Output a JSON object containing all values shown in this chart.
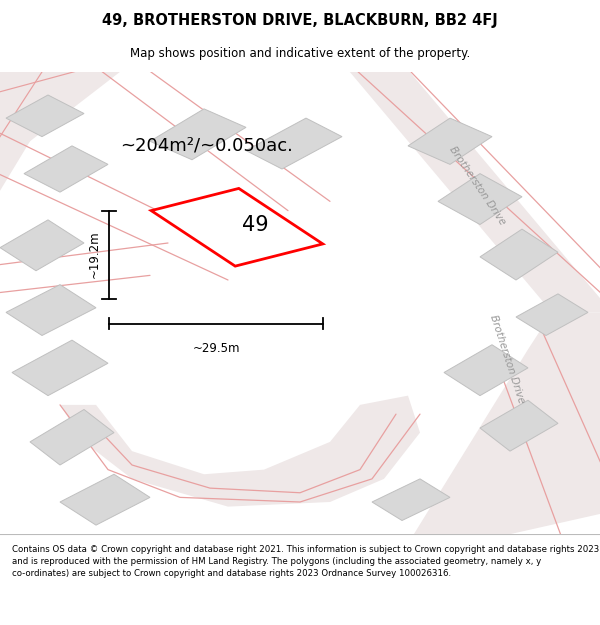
{
  "title": "49, BROTHERSTON DRIVE, BLACKBURN, BB2 4FJ",
  "subtitle": "Map shows position and indicative extent of the property.",
  "footer": "Contains OS data © Crown copyright and database right 2021. This information is subject to Crown copyright and database rights 2023 and is reproduced with the permission of HM Land Registry. The polygons (including the associated geometry, namely x, y co-ordinates) are subject to Crown copyright and database rights 2023 Ordnance Survey 100026316.",
  "area_text": "~204m²/~0.050ac.",
  "label_49": "49",
  "dim_width": "~29.5m",
  "dim_height": "~19.2m",
  "road_label_top": "Brotherston Drive",
  "road_label_bottom": "Brotherston Drive",
  "bg_color": "#f5f0f0",
  "plot_color": "#ff0000",
  "plot_fill": "#ffffff",
  "building_fill": "#d8d8d8",
  "building_edge": "#c0c0c0",
  "road_line_color": "#e8a0a0",
  "road_fill_color": "#efe8e8"
}
